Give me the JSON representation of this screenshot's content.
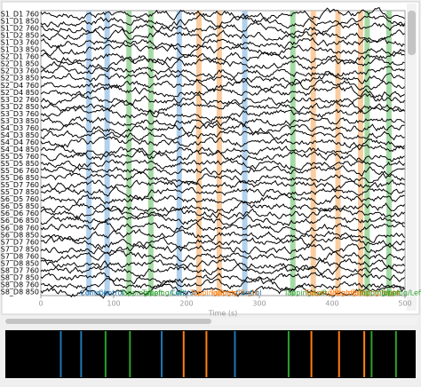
{
  "chart_data": {
    "type": "raw-browser",
    "x_label": "Time (s)",
    "xlim": [
      0,
      500
    ],
    "xticks": [
      0,
      100,
      200,
      300,
      400,
      500
    ],
    "channels": [
      "S1_D1 760",
      "S1_D1 850",
      "S1_D2 760",
      "S1_D2 850",
      "S1_D3 760",
      "S1_D3 850",
      "S2_D1 760",
      "S2_D1 850",
      "S2_D3 760",
      "S2_D3 850",
      "S2_D4 760",
      "S2_D4 850",
      "S3_D2 760",
      "S3_D2 850",
      "S3_D3 760",
      "S3_D3 850",
      "S4_D3 760",
      "S4_D3 850",
      "S4_D4 760",
      "S4_D4 850",
      "S5_D5 760",
      "S5_D5 850",
      "S5_D6 760",
      "S5_D6 850",
      "S5_D7 760",
      "S5_D7 850",
      "S6_D5 760",
      "S6_D5 850",
      "S6_D6 760",
      "S6_D6 850",
      "S6_D8 760",
      "S6_D8 850",
      "S7_D7 760",
      "S7_D7 850",
      "S7_D8 760",
      "S7_D8 850",
      "S8_D7 760",
      "S8_D7 850",
      "S8_D8 760",
      "S8_D8 850"
    ],
    "annotation_colors": {
      "Control": "#9ec5e8",
      "Tapping/Left": "#8fd18f",
      "Tapping/Right": "#f9c08a"
    },
    "annotation_text_colors": {
      "Control": "#1f77b4",
      "Tapping/Left": "#2ca02c",
      "Tapping/Right": "#ff7f0e"
    },
    "annotations": [
      {
        "onset": 66,
        "description": "Control"
      },
      {
        "onset": 91,
        "description": "Control"
      },
      {
        "onset": 121,
        "description": "Tapping/Left"
      },
      {
        "onset": 151,
        "description": "Tapping/Left"
      },
      {
        "onset": 190,
        "description": "Control"
      },
      {
        "onset": 217,
        "description": "Tapping/Right"
      },
      {
        "onset": 245,
        "description": "Tapping/Right"
      },
      {
        "onset": 280,
        "description": "Control"
      },
      {
        "onset": 346,
        "description": "Tapping/Left"
      },
      {
        "onset": 374,
        "description": "Tapping/Right"
      },
      {
        "onset": 408,
        "description": "Tapping/Right"
      },
      {
        "onset": 439,
        "description": "Tapping/Right"
      },
      {
        "onset": 448,
        "description": "Tapping/Left"
      },
      {
        "onset": 478,
        "description": "Tapping/Left"
      }
    ]
  }
}
